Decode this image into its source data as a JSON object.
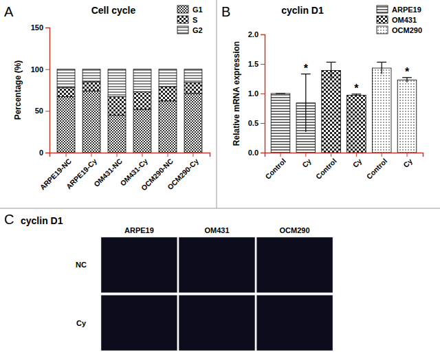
{
  "chart_data": [
    {
      "type": "bar",
      "label": "A",
      "title": "Cell cycle",
      "stacked": true,
      "legend": "upper right",
      "categories": [
        "ARPE19-NC",
        "ARPE19-Cy",
        "OM431-NC",
        "OM431-Cy",
        "OCM290-NC",
        "OCM290-Cy"
      ],
      "y_label": "Percentage (%)",
      "ylim": [
        0,
        150
      ],
      "yticks": [
        0,
        50,
        100,
        150
      ],
      "series": [
        {
          "name": "G1",
          "color": "#333333",
          "values": [
            67,
            74,
            45,
            52,
            62,
            71
          ]
        },
        {
          "name": "S",
          "color": "#222222",
          "values": [
            11,
            11,
            22,
            21,
            17,
            13
          ]
        },
        {
          "name": "G2",
          "color": "#444444",
          "values": [
            22,
            15,
            33,
            27,
            21,
            16
          ]
        }
      ]
    },
    {
      "type": "bar",
      "label": "B",
      "title": "cyclin D1",
      "legend": "upper right",
      "categories": [
        "Control",
        "Cy",
        "Control",
        "Cy",
        "Control",
        "Cy"
      ],
      "y_label": "Relative mRNA expression",
      "ylim": [
        0,
        2
      ],
      "yticks": [
        {
          "value": 0,
          "label": "0.0"
        },
        {
          "value": 0.5,
          "label": "0.5"
        },
        {
          "value": 1,
          "label": "1.0"
        },
        {
          "value": 1.5,
          "label": "1.5"
        },
        {
          "value": 2,
          "label": "2.0"
        }
      ],
      "series": [
        {
          "name": "ARPE19",
          "color": "#222222",
          "values": [
            1.0,
            0.84,
            null,
            null,
            null,
            null
          ],
          "errors": [
            0,
            0.49,
            null,
            null,
            null,
            null
          ],
          "significance": [
            null,
            "*",
            null,
            null,
            null,
            null
          ]
        },
        {
          "name": "OM431",
          "color": "#222222",
          "values": [
            null,
            null,
            1.39,
            0.97,
            null,
            null
          ],
          "errors": [
            null,
            null,
            0.14,
            0.02,
            null,
            null
          ],
          "significance": [
            null,
            null,
            null,
            "*",
            null,
            null
          ]
        },
        {
          "name": "OCM290",
          "color": "#222222",
          "values": [
            null,
            null,
            null,
            null,
            1.43,
            1.23
          ],
          "errors": [
            null,
            null,
            null,
            null,
            0.1,
            0.04
          ],
          "significance": [
            null,
            null,
            null,
            null,
            null,
            "*"
          ]
        }
      ]
    }
  ],
  "panel_c": {
    "label": "C",
    "title": "cyclin D1",
    "columns": [
      "ARPE19",
      "OM431",
      "OCM290"
    ],
    "rows": [
      "NC",
      "Cy"
    ]
  }
}
